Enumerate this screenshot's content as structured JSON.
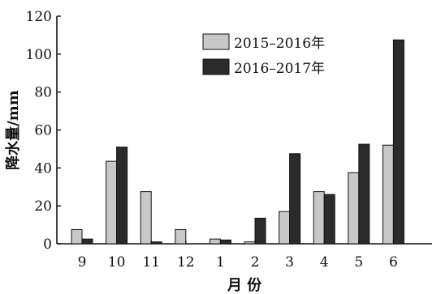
{
  "chart_data": {
    "type": "bar",
    "xlabel": "月 份",
    "ylabel": "降水量/mm",
    "ylim": [
      0,
      120
    ],
    "yticks": [
      0,
      20,
      40,
      60,
      80,
      100,
      120
    ],
    "categories": [
      "9",
      "10",
      "11",
      "12",
      "1",
      "2",
      "3",
      "4",
      "5",
      "6"
    ],
    "series": [
      {
        "name": "2015–2016年",
        "color": "#c8c8c8",
        "values": [
          7.5,
          43.5,
          27.5,
          7.5,
          2.5,
          1,
          17,
          27.5,
          37.5,
          52
        ]
      },
      {
        "name": "2016–2017年",
        "color": "#2b2b2b",
        "values": [
          2.5,
          51,
          1,
          0,
          2,
          13.5,
          47.5,
          26,
          52.5,
          107.5
        ]
      }
    ],
    "legend_position": "top-right",
    "grid": false
  }
}
